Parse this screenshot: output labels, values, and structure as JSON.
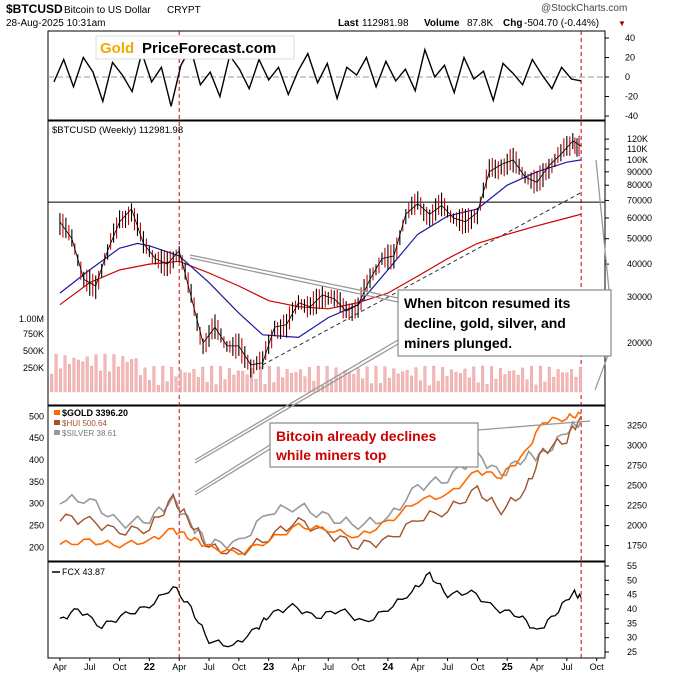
{
  "header": {
    "symbol": "$BTCUSD",
    "name": "Bitcoin to US Dollar",
    "exchange": "CRYPT",
    "date": "28-Aug-2025 10:31am",
    "last_label": "Last",
    "last_value": "112981.98",
    "volume_label": "Volume",
    "volume_value": "87.8K",
    "chg_label": "Chg",
    "chg_value": "-504.70 (-0.44%)",
    "chg_arrow": "▼",
    "watermark": "@StockCharts.com"
  },
  "logo": {
    "gold_word": "Gold",
    "rest": "PriceForecast.com"
  },
  "annotations": {
    "a1_lines": [
      "When bitcon resumed its",
      "decline, gold, silver, and",
      "miners plunged."
    ],
    "a2_lines": [
      "Bitcoin already declines",
      "while miners top"
    ]
  },
  "colors": {
    "bitcoin_price": "#000000",
    "ma_red": "#cc0000",
    "ma_blue": "#1a1aa0",
    "trend_dashed": "#333333",
    "gold": "#ff6a00",
    "hui": "#a0522d",
    "silver": "#999999",
    "annotation_red": "#cc0000",
    "volume_bar": "#f4b8b8"
  },
  "chart_data": [
    {
      "type": "line",
      "panel": "momentum",
      "yticks": [
        "40",
        "20",
        "0",
        "-20",
        "-40"
      ],
      "ylim": [
        -40,
        40
      ],
      "series": [
        {
          "values": [
            -5,
            18,
            -10,
            20,
            5,
            -25,
            15,
            2,
            -15,
            25,
            -5,
            10,
            -30,
            12,
            30,
            -8,
            5,
            -20,
            22,
            8,
            -12,
            18,
            -3,
            10,
            -18,
            6,
            24,
            -6,
            14,
            -22,
            10,
            2,
            20,
            -10,
            16,
            -4,
            8,
            -14,
            28,
            0,
            12,
            -16,
            20,
            -2,
            6,
            -24,
            14,
            4,
            -8,
            18,
            2,
            -12,
            10,
            -2,
            -4
          ]
        }
      ]
    },
    {
      "type": "line",
      "panel": "price",
      "title": "$BTCUSD (Weekly) 112981.98",
      "y_scale": "log",
      "x": [
        "Apr",
        "Jul",
        "Oct",
        "22",
        "Apr",
        "Jul",
        "Oct",
        "23",
        "Apr",
        "Jul",
        "Oct",
        "24",
        "Apr",
        "Jul",
        "Oct",
        "25",
        "Apr",
        "Jul",
        "Oct"
      ],
      "yticks": [
        120000,
        110000,
        100000,
        90000,
        80000,
        70000,
        60000,
        50000,
        40000,
        30000,
        20000
      ],
      "ytick_labels": [
        "120K",
        "110K",
        "100K",
        "90000",
        "80000",
        "70000",
        "60000",
        "50000",
        "40000",
        "30000",
        "20000"
      ],
      "volume_ticks": [
        "1.00M",
        "750K",
        "500K",
        "250K"
      ],
      "horizontal_line": 69000,
      "series": [
        {
          "values": [
            [
              2021.25,
              58000
            ],
            [
              2021.35,
              50000
            ],
            [
              2021.45,
              35000
            ],
            [
              2021.55,
              33000
            ],
            [
              2021.65,
              45000
            ],
            [
              2021.75,
              58000
            ],
            [
              2021.85,
              65000
            ],
            [
              2021.95,
              48000
            ],
            [
              2022.05,
              42000
            ],
            [
              2022.15,
              40000
            ],
            [
              2022.25,
              45000
            ],
            [
              2022.35,
              30000
            ],
            [
              2022.45,
              20000
            ],
            [
              2022.55,
              23000
            ],
            [
              2022.65,
              19500
            ],
            [
              2022.75,
              19500
            ],
            [
              2022.85,
              16500
            ],
            [
              2022.95,
              16800
            ],
            [
              2023.05,
              23000
            ],
            [
              2023.15,
              23500
            ],
            [
              2023.25,
              28500
            ],
            [
              2023.35,
              27500
            ],
            [
              2023.45,
              30500
            ],
            [
              2023.55,
              29500
            ],
            [
              2023.65,
              26500
            ],
            [
              2023.75,
              28000
            ],
            [
              2023.85,
              35000
            ],
            [
              2023.95,
              42000
            ],
            [
              2024.05,
              43000
            ],
            [
              2024.15,
              62000
            ],
            [
              2024.25,
              68000
            ],
            [
              2024.35,
              62000
            ],
            [
              2024.45,
              67000
            ],
            [
              2024.55,
              60000
            ],
            [
              2024.65,
              58000
            ],
            [
              2024.75,
              63000
            ],
            [
              2024.85,
              90000
            ],
            [
              2024.95,
              96000
            ],
            [
              2025.05,
              100000
            ],
            [
              2025.15,
              86000
            ],
            [
              2025.25,
              82000
            ],
            [
              2025.35,
              95000
            ],
            [
              2025.45,
              105000
            ],
            [
              2025.55,
              118000
            ],
            [
              2025.62,
              113000
            ]
          ]
        },
        {
          "values": [
            [
              2021.25,
              28000
            ],
            [
              2021.5,
              34000
            ],
            [
              2021.75,
              38000
            ],
            [
              2022.0,
              40000
            ],
            [
              2022.25,
              41000
            ],
            [
              2022.5,
              37000
            ],
            [
              2022.75,
              33000
            ],
            [
              2023.0,
              29000
            ],
            [
              2023.25,
              27500
            ],
            [
              2023.5,
              27000
            ],
            [
              2023.75,
              28500
            ],
            [
              2024.0,
              31000
            ],
            [
              2024.25,
              36000
            ],
            [
              2024.5,
              42000
            ],
            [
              2024.75,
              48000
            ],
            [
              2025.0,
              52000
            ],
            [
              2025.25,
              56000
            ],
            [
              2025.5,
              60000
            ],
            [
              2025.62,
              62000
            ]
          ]
        },
        {
          "values": [
            [
              2021.25,
              31000
            ],
            [
              2021.5,
              38000
            ],
            [
              2021.75,
              46000
            ],
            [
              2021.9,
              48000
            ],
            [
              2022.0,
              47000
            ],
            [
              2022.25,
              43000
            ],
            [
              2022.5,
              34000
            ],
            [
              2022.75,
              26000
            ],
            [
              2022.95,
              21500
            ],
            [
              2023.25,
              21000
            ],
            [
              2023.5,
              25000
            ],
            [
              2023.75,
              28000
            ],
            [
              2024.0,
              38000
            ],
            [
              2024.25,
              52000
            ],
            [
              2024.5,
              61000
            ],
            [
              2024.75,
              65000
            ],
            [
              2025.0,
              80000
            ],
            [
              2025.25,
              90000
            ],
            [
              2025.5,
              98000
            ],
            [
              2025.62,
              100000
            ]
          ]
        }
      ]
    },
    {
      "type": "line",
      "panel": "metals",
      "legend": [
        "$GOLD 3396.20",
        "$HUI 500.64",
        "$SILVER 38.61"
      ],
      "yticks_left": [
        "500",
        "450",
        "400",
        "350",
        "300",
        "250",
        "200"
      ],
      "yticks_right": [
        "3250",
        "3000",
        "2750",
        "2500",
        "2250",
        "2000",
        "1750"
      ],
      "series": [
        {
          "name": "$GOLD 3396.20",
          "values": [
            [
              2021.25,
              1770
            ],
            [
              2021.5,
              1800
            ],
            [
              2021.75,
              1760
            ],
            [
              2022.0,
              1810
            ],
            [
              2022.2,
              1950
            ],
            [
              2022.35,
              1850
            ],
            [
              2022.5,
              1730
            ],
            [
              2022.75,
              1650
            ],
            [
              2023.0,
              1820
            ],
            [
              2023.25,
              1990
            ],
            [
              2023.5,
              1950
            ],
            [
              2023.75,
              1860
            ],
            [
              2024.0,
              2040
            ],
            [
              2024.25,
              2320
            ],
            [
              2024.5,
              2380
            ],
            [
              2024.75,
              2680
            ],
            [
              2024.95,
              2620
            ],
            [
              2025.15,
              2900
            ],
            [
              2025.3,
              3300
            ],
            [
              2025.5,
              3350
            ],
            [
              2025.62,
              3396
            ]
          ]
        },
        {
          "name": "$HUI 500.64",
          "values": [
            [
              2021.25,
              270
            ],
            [
              2021.5,
              260
            ],
            [
              2021.75,
              235
            ],
            [
              2022.0,
              245
            ],
            [
              2022.2,
              310
            ],
            [
              2022.35,
              255
            ],
            [
              2022.5,
              200
            ],
            [
              2022.75,
              185
            ],
            [
              2023.0,
              225
            ],
            [
              2023.25,
              260
            ],
            [
              2023.5,
              230
            ],
            [
              2023.75,
              205
            ],
            [
              2024.0,
              215
            ],
            [
              2024.25,
              265
            ],
            [
              2024.5,
              285
            ],
            [
              2024.75,
              330
            ],
            [
              2024.95,
              285
            ],
            [
              2025.15,
              330
            ],
            [
              2025.3,
              420
            ],
            [
              2025.5,
              450
            ],
            [
              2025.62,
              500
            ]
          ]
        },
        {
          "name": "$SILVER 38.61",
          "values": [
            [
              2021.25,
              26
            ],
            [
              2021.5,
              26
            ],
            [
              2021.75,
              22
            ],
            [
              2022.0,
              23
            ],
            [
              2022.2,
              26
            ],
            [
              2022.35,
              22
            ],
            [
              2022.5,
              19
            ],
            [
              2022.75,
              19
            ],
            [
              2023.0,
              24
            ],
            [
              2023.25,
              25
            ],
            [
              2023.5,
              23
            ],
            [
              2023.75,
              22
            ],
            [
              2024.0,
              23
            ],
            [
              2024.25,
              28
            ],
            [
              2024.5,
              29.5
            ],
            [
              2024.75,
              33
            ],
            [
              2024.95,
              30
            ],
            [
              2025.15,
              33
            ],
            [
              2025.3,
              33
            ],
            [
              2025.5,
              37
            ],
            [
              2025.62,
              38.6
            ]
          ]
        }
      ]
    },
    {
      "type": "line",
      "panel": "fcx",
      "legend": [
        "FCX 43.87"
      ],
      "yticks": [
        "55",
        "50",
        "45",
        "40",
        "35",
        "30",
        "25"
      ],
      "ylim": [
        25,
        55
      ],
      "series": [
        {
          "name": "FCX 43.87",
          "values": [
            [
              2021.25,
              36
            ],
            [
              2021.4,
              40
            ],
            [
              2021.6,
              34
            ],
            [
              2021.8,
              38
            ],
            [
              2022.0,
              41
            ],
            [
              2022.2,
              48
            ],
            [
              2022.35,
              40
            ],
            [
              2022.5,
              29
            ],
            [
              2022.7,
              27
            ],
            [
              2022.9,
              33
            ],
            [
              2023.0,
              38
            ],
            [
              2023.2,
              41
            ],
            [
              2023.4,
              37
            ],
            [
              2023.6,
              40
            ],
            [
              2023.8,
              35
            ],
            [
              2024.0,
              40
            ],
            [
              2024.2,
              46
            ],
            [
              2024.35,
              52
            ],
            [
              2024.5,
              45
            ],
            [
              2024.7,
              46
            ],
            [
              2024.9,
              40
            ],
            [
              2025.1,
              38
            ],
            [
              2025.25,
              32
            ],
            [
              2025.4,
              38
            ],
            [
              2025.55,
              46
            ],
            [
              2025.62,
              43.9
            ]
          ]
        }
      ]
    }
  ]
}
